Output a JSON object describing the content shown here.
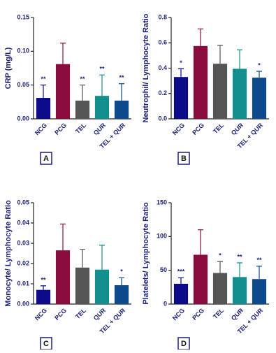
{
  "chart_data": [
    {
      "type": "bar",
      "panel": "A",
      "ylabel": "CRP (mg/L)",
      "categories": [
        "NCG",
        "PCG",
        "TEL",
        "QUR",
        "TEL + QUR"
      ],
      "values": [
        0.031,
        0.081,
        0.027,
        0.034,
        0.027
      ],
      "errors": [
        0.019,
        0.031,
        0.023,
        0.031,
        0.025
      ],
      "colors": [
        "#0b0b8a",
        "#8a0c3e",
        "#555555",
        "#11908e",
        "#0c4a8c"
      ],
      "annotations": [
        "**",
        null,
        "**",
        "**",
        "**"
      ],
      "ylim": [
        0,
        0.15
      ],
      "yticks": [
        {
          "value": 0,
          "label": "0.00"
        },
        {
          "value": 0.05,
          "label": "0.05"
        },
        {
          "value": 0.1,
          "label": "0.10"
        },
        {
          "value": 0.15,
          "label": "0.15"
        }
      ]
    },
    {
      "type": "bar",
      "panel": "B",
      "ylabel": "Neutrophil/ Lymphocyte Ratio",
      "categories": [
        "NCG",
        "PCG",
        "TEL",
        "QUR",
        "TEL + QUR"
      ],
      "values": [
        0.33,
        0.575,
        0.435,
        0.395,
        0.325
      ],
      "errors": [
        0.065,
        0.135,
        0.145,
        0.15,
        0.05
      ],
      "colors": [
        "#0b0b8a",
        "#8a0c3e",
        "#555555",
        "#11908e",
        "#0c4a8c"
      ],
      "annotations": [
        "*",
        null,
        null,
        null,
        "*"
      ],
      "ylim": [
        0,
        0.8
      ],
      "yticks": [
        {
          "value": 0,
          "label": "0.0"
        },
        0.2,
        0.4,
        0.6,
        0.8
      ]
    },
    {
      "type": "bar",
      "panel": "C",
      "ylabel": "Monocyte/ Lymphocyte Ratio",
      "categories": [
        "NCG",
        "PCG",
        "TEL",
        "QUR",
        "TEL + QUR"
      ],
      "values": [
        0.007,
        0.0265,
        0.018,
        0.017,
        0.0093
      ],
      "errors": [
        0.002,
        0.013,
        0.009,
        0.012,
        0.0037
      ],
      "colors": [
        "#0b0b8a",
        "#8a0c3e",
        "#555555",
        "#11908e",
        "#0c4a8c"
      ],
      "annotations": [
        "**",
        null,
        null,
        null,
        "*"
      ],
      "ylim": [
        0,
        0.05
      ],
      "yticks": [
        {
          "value": 0,
          "label": "0.00"
        },
        0.01,
        0.02,
        0.03,
        0.04,
        0.05
      ]
    },
    {
      "type": "bar",
      "panel": "D",
      "ylabel": "Platelets/ Lymphocyte Ratio",
      "categories": [
        "NCG",
        "PCG",
        "TEL",
        "QUR",
        "TEL + QUR"
      ],
      "values": [
        30,
        73,
        46,
        40,
        37
      ],
      "errors": [
        9,
        37,
        17,
        21,
        19
      ],
      "colors": [
        "#0b0b8a",
        "#8a0c3e",
        "#555555",
        "#11908e",
        "#0c4a8c"
      ],
      "annotations": [
        "***",
        null,
        "*",
        "**",
        "**"
      ],
      "ylim": [
        0,
        150
      ],
      "yticks": [
        0,
        50,
        100,
        150
      ]
    }
  ]
}
